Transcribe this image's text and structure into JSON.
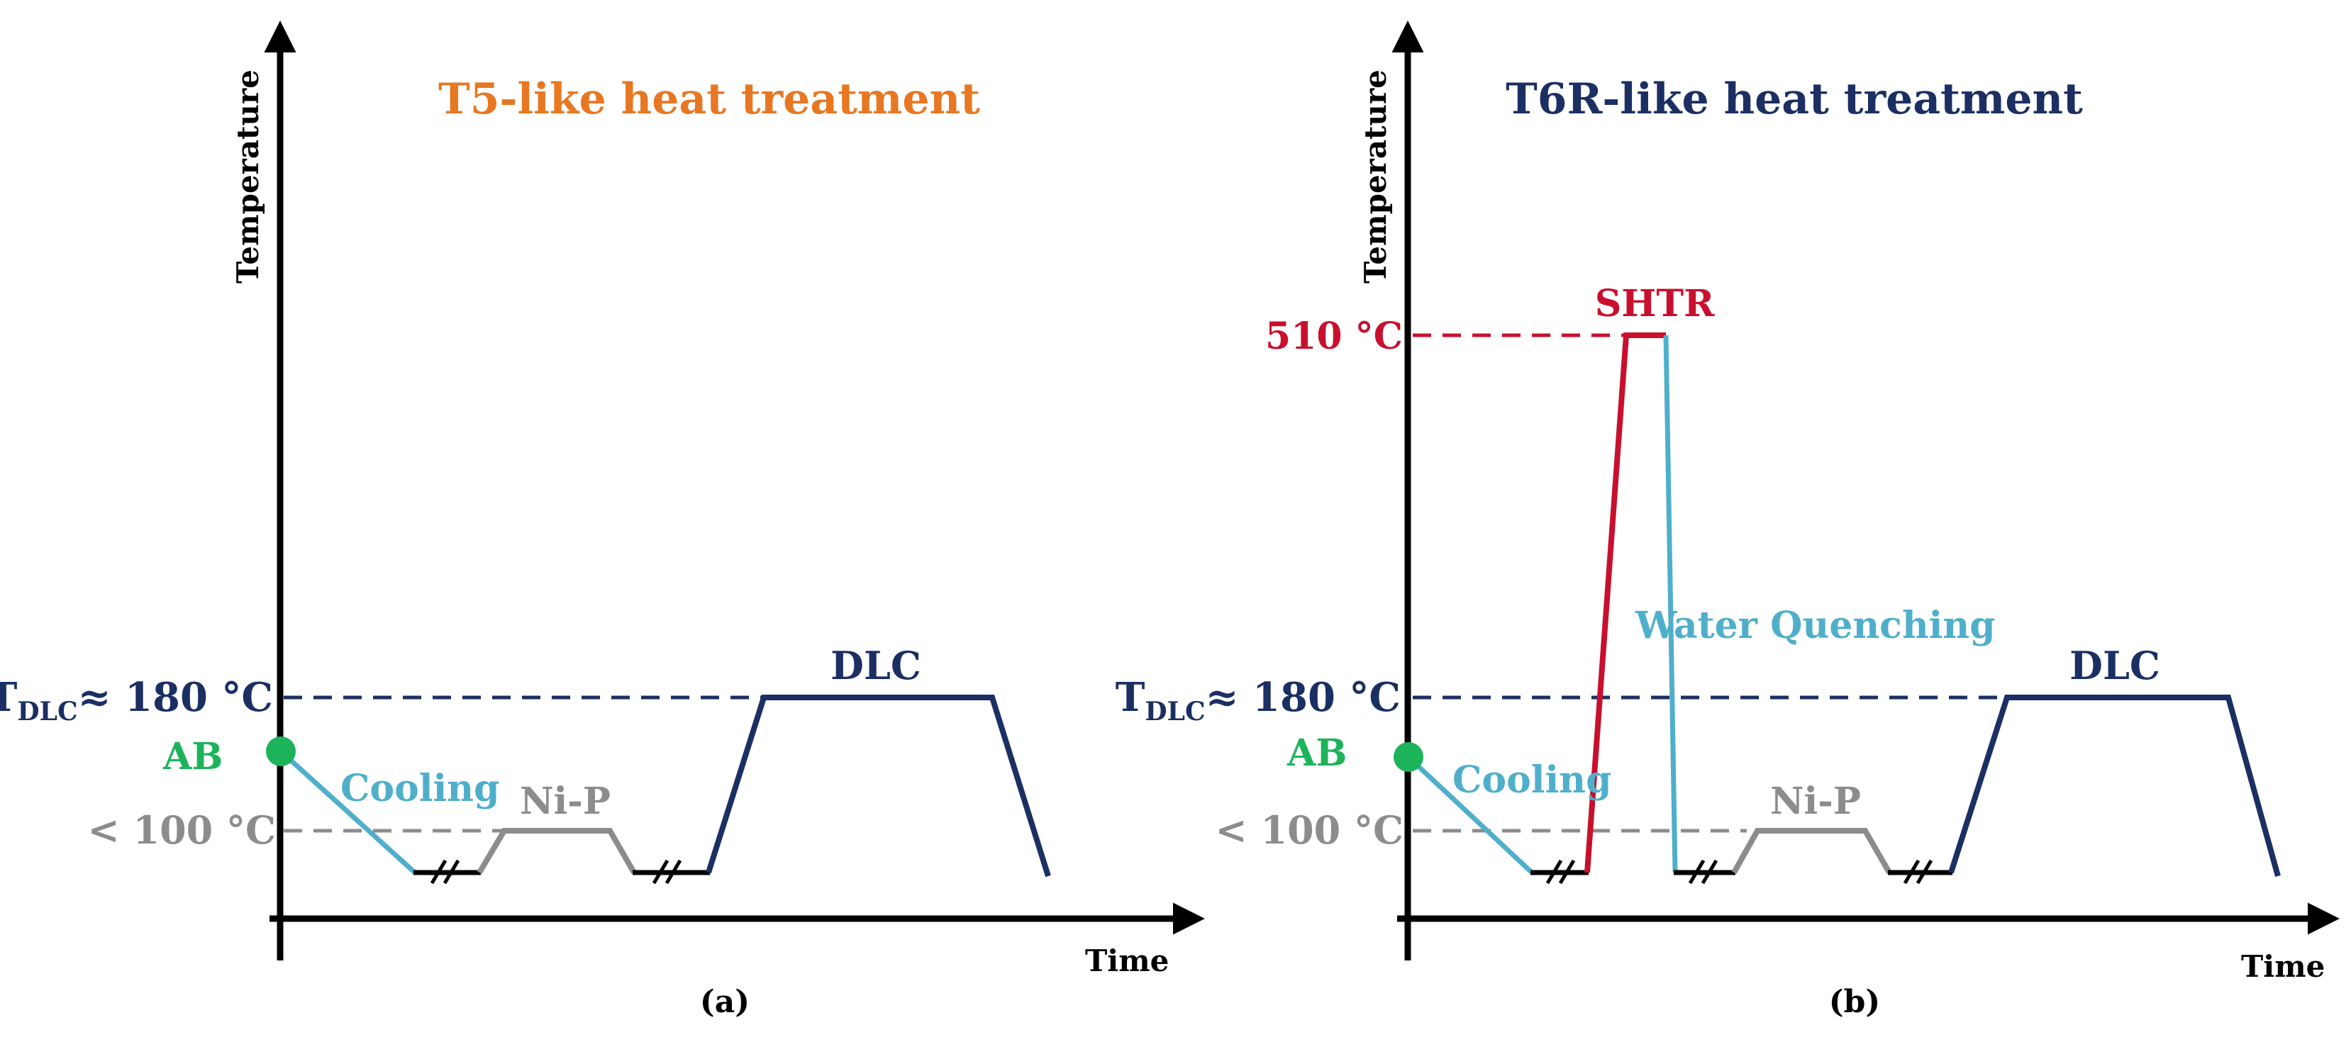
{
  "colors": {
    "navy": "#1B2F63",
    "orange": "#E87722",
    "green": "#1DB35A",
    "cyan": "#4FAFCB",
    "gray": "#8C8C8C",
    "red": "#C8102E",
    "black": "#000000"
  },
  "panel_a": {
    "title": "T5-like heat treatment",
    "y_axis_label": "Temperature",
    "x_axis_label": "Time",
    "caption": "(a)",
    "tdlc_main": "T",
    "tdlc_sub": "DLC",
    "tdlc_value": "≈ 180 °C",
    "lt100": "< 100 °C",
    "ab": "AB",
    "cooling": "Cooling",
    "nip": "Ni-P",
    "dlc": "DLC"
  },
  "panel_b": {
    "title": "T6R-like heat treatment",
    "y_axis_label": "Temperature",
    "x_axis_label": "Time",
    "caption": "(b)",
    "tdlc_main": "T",
    "tdlc_sub": "DLC",
    "tdlc_value": "≈ 180 °C",
    "lt100": "< 100 °C",
    "ab": "AB",
    "cooling": "Cooling",
    "nip": "Ni-P",
    "dlc": "DLC",
    "t510": "510 °C",
    "shtr": "SHTR",
    "water_quenching": "Water Quenching"
  }
}
